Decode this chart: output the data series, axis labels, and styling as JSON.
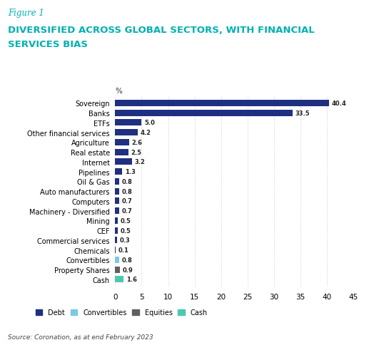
{
  "figure_label": "Figure 1",
  "title_line1": "DIVERSIFIED ACROSS GLOBAL SECTORS, WITH FINANCIAL",
  "title_line2": "SERVICES BIAS",
  "title_color": "#00B0B0",
  "figure_label_color": "#00B0B0",
  "source": "Source: Coronation, as at end February 2023",
  "categories": [
    "Sovereign",
    "Banks",
    "ETFs",
    "Other financial services",
    "Agriculture",
    "Real estate",
    "Internet",
    "Pipelines",
    "Oil & Gas",
    "Auto manufacturers",
    "Computers",
    "Machinery - Diversified",
    "Mining",
    "CEF",
    "Commercial services",
    "Chemicals",
    "Convertibles",
    "Property Shares",
    "Cash"
  ],
  "values": [
    40.4,
    33.5,
    5.0,
    4.2,
    2.6,
    2.5,
    3.2,
    1.3,
    0.8,
    0.8,
    0.7,
    0.7,
    0.5,
    0.5,
    0.3,
    0.1,
    0.8,
    0.9,
    1.6
  ],
  "bar_colors": [
    "#1F3080",
    "#1F3080",
    "#1F3080",
    "#1F3080",
    "#1F3080",
    "#1F3080",
    "#1F3080",
    "#1F3080",
    "#1F3080",
    "#1F3080",
    "#1F3080",
    "#1F3080",
    "#1F3080",
    "#1F3080",
    "#1F3080",
    "#1F3080",
    "#7EC8E3",
    "#606060",
    "#4DC8B0"
  ],
  "xlim": [
    0,
    45
  ],
  "xticks": [
    0,
    5,
    10,
    15,
    20,
    25,
    30,
    35,
    40,
    45
  ],
  "legend": [
    {
      "label": "Debt",
      "color": "#1F3080"
    },
    {
      "label": "Convertibles",
      "color": "#7EC8E3"
    },
    {
      "label": "Equities",
      "color": "#606060"
    },
    {
      "label": "Cash",
      "color": "#4DC8B0"
    }
  ],
  "background_color": "#FFFFFF",
  "grid_color": "#CCCCCC"
}
